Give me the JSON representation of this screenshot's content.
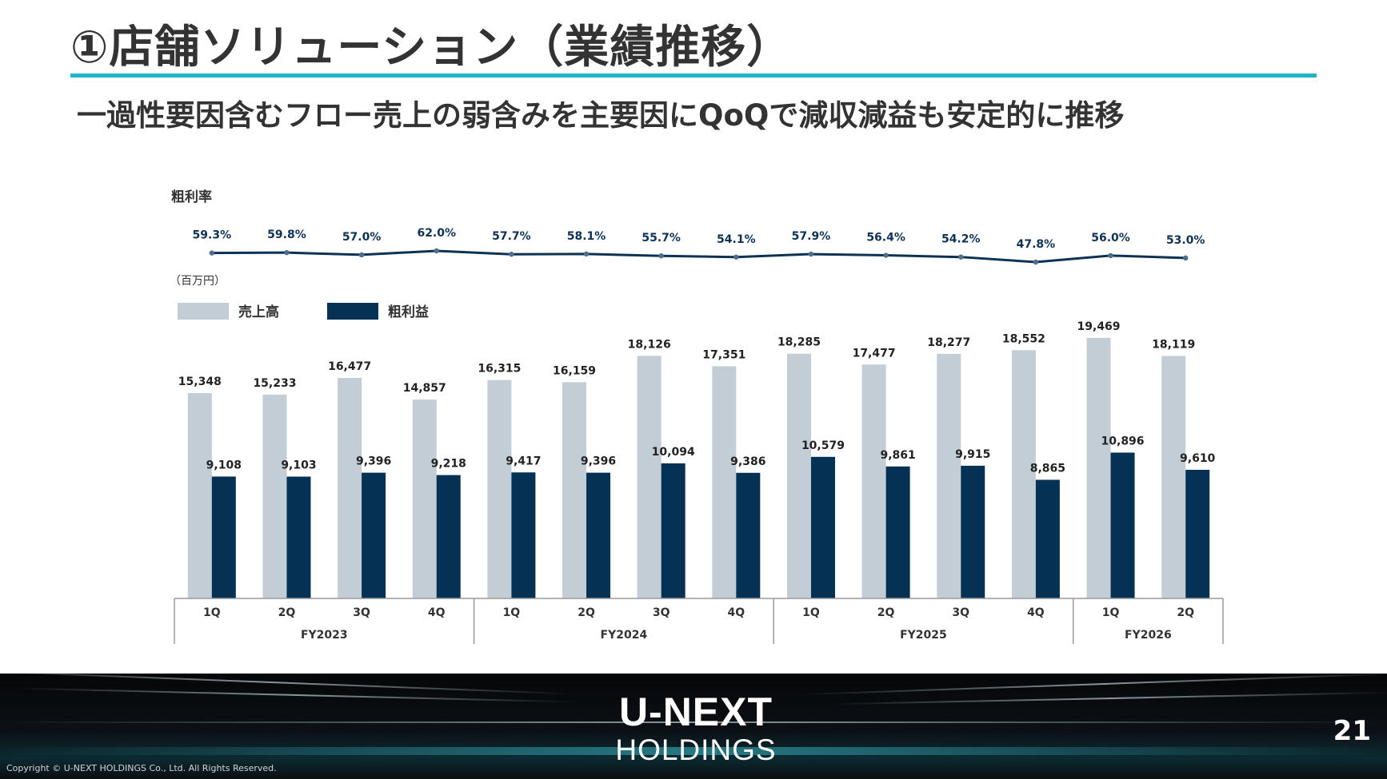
{
  "slide": {
    "title": "①店舗ソリューション（業績推移）",
    "subtitle": "一過性要因含むフロー売上の弱含みを主要因にQoQで減収減益も安定的に推移",
    "page_number": "21",
    "copyright": "Copyright © U-NEXT HOLDINGS Co., Ltd. All Rights Reserved.",
    "logo_main": "U-NEXT",
    "logo_sub": "HOLDINGS",
    "accent_color": "#1fb5c8"
  },
  "chart_data": [
    {
      "type": "line",
      "title": "粗利率",
      "categories": [
        "1Q",
        "2Q",
        "3Q",
        "4Q",
        "1Q",
        "2Q",
        "3Q",
        "4Q",
        "1Q",
        "2Q",
        "3Q",
        "4Q",
        "1Q",
        "2Q"
      ],
      "values": [
        59.3,
        59.8,
        57.0,
        62.0,
        57.7,
        58.1,
        55.7,
        54.1,
        57.9,
        56.4,
        54.2,
        47.8,
        56.0,
        53.0
      ],
      "labels": [
        "59.3%",
        "59.8%",
        "57.0%",
        "62.0%",
        "57.7%",
        "58.1%",
        "55.7%",
        "54.1%",
        "57.9%",
        "56.4%",
        "54.2%",
        "47.8%",
        "56.0%",
        "53.0%"
      ],
      "unit": "%",
      "color": "#0e3255"
    },
    {
      "type": "bar",
      "unit": "（百万円）",
      "categories": [
        "1Q",
        "2Q",
        "3Q",
        "4Q",
        "1Q",
        "2Q",
        "3Q",
        "4Q",
        "1Q",
        "2Q",
        "3Q",
        "4Q",
        "1Q",
        "2Q"
      ],
      "groups": [
        {
          "label": "FY2023",
          "count": 4
        },
        {
          "label": "FY2024",
          "count": 4
        },
        {
          "label": "FY2025",
          "count": 4
        },
        {
          "label": "FY2026",
          "count": 2
        }
      ],
      "series": [
        {
          "name": "売上高",
          "color": "#c2cdd6",
          "values": [
            15348,
            15233,
            16477,
            14857,
            16315,
            16159,
            18126,
            17351,
            18285,
            17477,
            18277,
            18552,
            19469,
            18119
          ],
          "labels": [
            "15,348",
            "15,233",
            "16,477",
            "14,857",
            "16,315",
            "16,159",
            "18,126",
            "17,351",
            "18,285",
            "17,477",
            "18,277",
            "18,552",
            "19,469",
            "18,119"
          ]
        },
        {
          "name": "粗利益",
          "color": "#053155",
          "values": [
            9108,
            9103,
            9396,
            9218,
            9417,
            9396,
            10094,
            9386,
            10579,
            9861,
            9915,
            8865,
            10896,
            9610
          ],
          "labels": [
            "9,108",
            "9,103",
            "9,396",
            "9,218",
            "9,417",
            "9,396",
            "10,094",
            "9,386",
            "10,579",
            "9,861",
            "9,915",
            "8,865",
            "10,896",
            "9,610"
          ]
        }
      ],
      "ylim": [
        0,
        20000
      ],
      "legend_position": "top-left",
      "grid": false
    }
  ]
}
